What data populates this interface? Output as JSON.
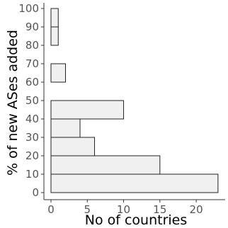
{
  "chart_data": {
    "type": "bar",
    "orientation": "horizontal",
    "xlabel": "No of countries",
    "ylabel": "% of new ASes added",
    "xlim": [
      0,
      23.5
    ],
    "ylim": [
      0,
      100
    ],
    "x_ticks": [
      0,
      5,
      10,
      15,
      20
    ],
    "y_ticks": [
      0,
      10,
      20,
      30,
      40,
      50,
      60,
      70,
      80,
      90,
      100
    ],
    "bars": [
      {
        "from": 0,
        "to": 10,
        "value": 23
      },
      {
        "from": 10,
        "to": 20,
        "value": 15
      },
      {
        "from": 20,
        "to": 30,
        "value": 6
      },
      {
        "from": 30,
        "to": 40,
        "value": 4
      },
      {
        "from": 40,
        "to": 50,
        "value": 10
      },
      {
        "from": 60,
        "to": 70,
        "value": 2
      },
      {
        "from": 80,
        "to": 90,
        "value": 1
      },
      {
        "from": 90,
        "to": 100,
        "value": 1
      }
    ],
    "grid": false,
    "legend": "none",
    "bar_fill": "#f0f0f0",
    "bar_stroke": "#222222",
    "axis_color": "#333333",
    "tick_label_color": "#555555"
  }
}
